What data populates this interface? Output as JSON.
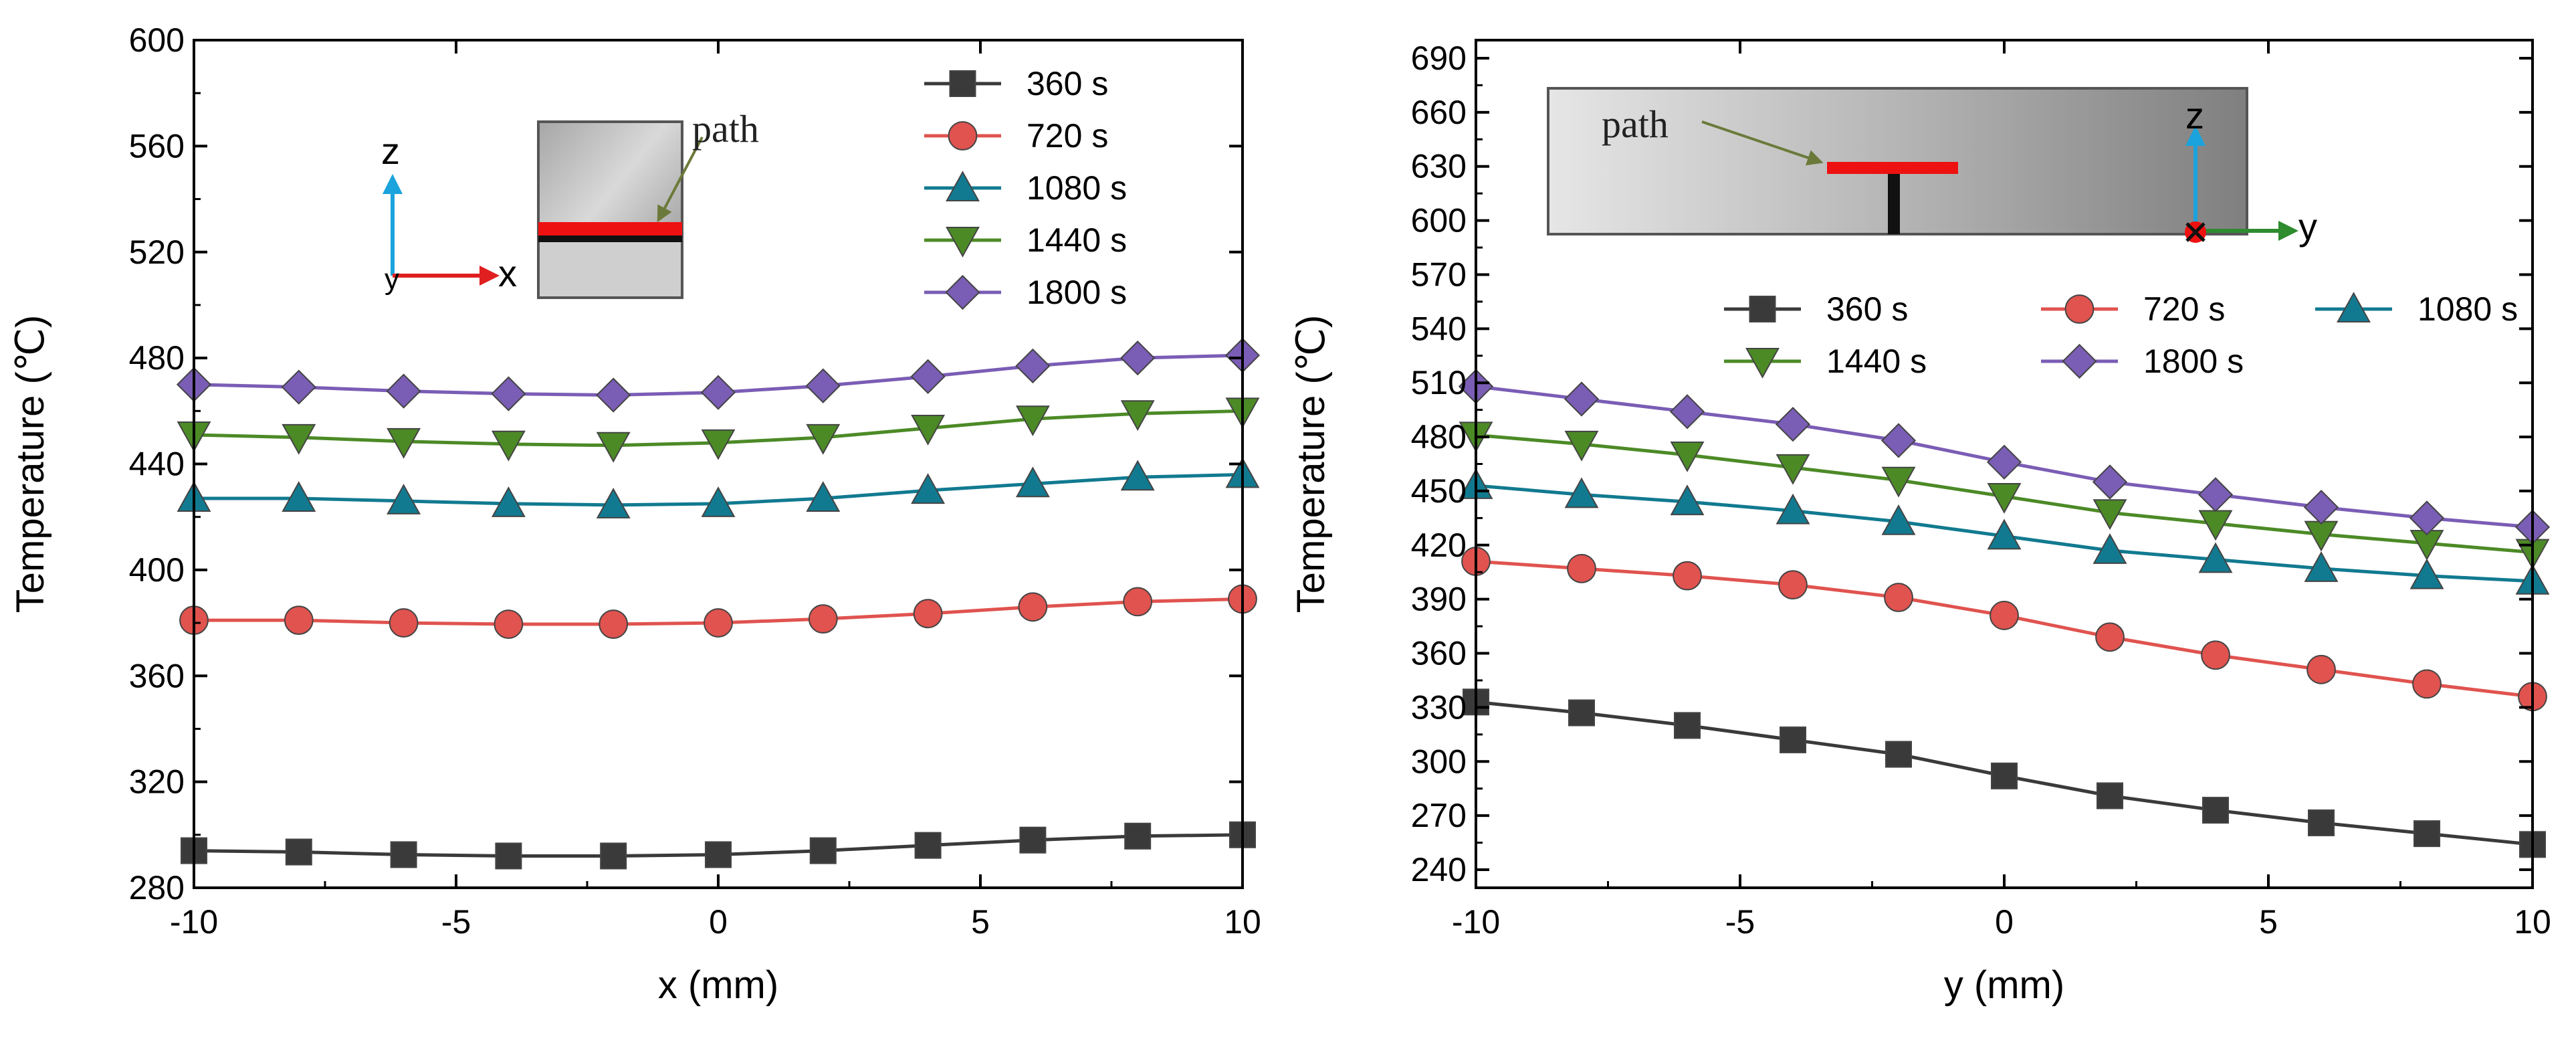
{
  "colors": {
    "360 s": "#3a3a3a",
    "720 s": "#e0534f",
    "1080 s": "#117a90",
    "1440 s": "#4c8a26",
    "1800 s": "#7a5db5",
    "arrow_blue": "#1aa3dc",
    "arrow_red": "#e02020",
    "arrow_green": "#2e8b2e"
  },
  "chart_data": [
    {
      "type": "line",
      "xlabel": "x (mm)",
      "ylabel": "Temperature (℃)",
      "xlim": [
        -10,
        10
      ],
      "ylim": [
        280,
        600
      ],
      "xticks": [
        -10,
        -5,
        0,
        5,
        10
      ],
      "xtick_labels": [
        "-10",
        "-5",
        "0",
        "5",
        "10"
      ],
      "yticks": [
        280,
        320,
        360,
        400,
        440,
        480,
        520,
        560,
        600
      ],
      "ytick_labels": [
        "280",
        "320",
        "360",
        "400",
        "440",
        "480",
        "520",
        "560",
        "600"
      ],
      "x": [
        -10,
        -8,
        -6,
        -4,
        -2,
        0,
        2,
        4,
        6,
        8,
        10
      ],
      "series": [
        {
          "name": "360 s",
          "marker": "square",
          "values": [
            294,
            293.5,
            292.5,
            292,
            292,
            292.5,
            294,
            296,
            298,
            299.5,
            300
          ]
        },
        {
          "name": "720 s",
          "marker": "circle",
          "values": [
            381,
            381,
            380,
            379.5,
            379.5,
            380,
            381.5,
            383.5,
            386,
            388,
            389
          ]
        },
        {
          "name": "1080 s",
          "marker": "triangle-up",
          "values": [
            427,
            427,
            426,
            425,
            424.5,
            425,
            427,
            430,
            432.5,
            435,
            436
          ]
        },
        {
          "name": "1440 s",
          "marker": "triangle-down",
          "values": [
            451,
            450,
            448.5,
            447.5,
            447,
            448,
            450,
            453.5,
            457,
            459,
            460
          ]
        },
        {
          "name": "1800 s",
          "marker": "diamond",
          "values": [
            470,
            469,
            467.5,
            466.5,
            466,
            467,
            469.5,
            473,
            477,
            480,
            481
          ]
        }
      ],
      "legend_position": "top-right",
      "inset": {
        "path_label": "path",
        "axis_up": "z",
        "axis_right": "x",
        "axis_out": "y"
      }
    },
    {
      "type": "line",
      "xlabel": "y (mm)",
      "ylabel": "Temperature (℃)",
      "xlim": [
        -10,
        10
      ],
      "ylim": [
        230,
        700
      ],
      "xticks": [
        -10,
        -5,
        0,
        5,
        10
      ],
      "xtick_labels": [
        "-10",
        "-5",
        "0",
        "5",
        "10"
      ],
      "yticks": [
        240,
        270,
        300,
        330,
        360,
        390,
        420,
        450,
        480,
        510,
        540,
        570,
        600,
        630,
        660,
        690
      ],
      "ytick_labels": [
        "240",
        "270",
        "300",
        "330",
        "360",
        "390",
        "420",
        "450",
        "480",
        "510",
        "540",
        "570",
        "600",
        "630",
        "660",
        "690"
      ],
      "x": [
        -10,
        -8,
        -6,
        -4,
        -2,
        0,
        2,
        4,
        6,
        8,
        10
      ],
      "series": [
        {
          "name": "360 s",
          "marker": "square",
          "values": [
            333,
            327,
            320,
            312,
            304,
            292,
            281,
            273,
            266,
            260,
            254
          ]
        },
        {
          "name": "720 s",
          "marker": "circle",
          "values": [
            411,
            407,
            403,
            398,
            391,
            381,
            369,
            359,
            351,
            343,
            336
          ]
        },
        {
          "name": "1080 s",
          "marker": "triangle-up",
          "values": [
            453,
            448,
            444,
            439,
            433,
            425,
            417,
            412,
            407,
            403,
            400
          ]
        },
        {
          "name": "1440 s",
          "marker": "triangle-down",
          "values": [
            481,
            476,
            470,
            463,
            456,
            447,
            438,
            432,
            426,
            421,
            416
          ]
        },
        {
          "name": "1800 s",
          "marker": "diamond",
          "values": [
            508,
            501,
            494,
            487,
            478,
            466,
            455,
            448,
            441,
            435,
            430
          ]
        }
      ],
      "legend_position": "middle",
      "inset": {
        "path_label": "path",
        "axis_up": "z",
        "axis_right": "y"
      }
    }
  ]
}
